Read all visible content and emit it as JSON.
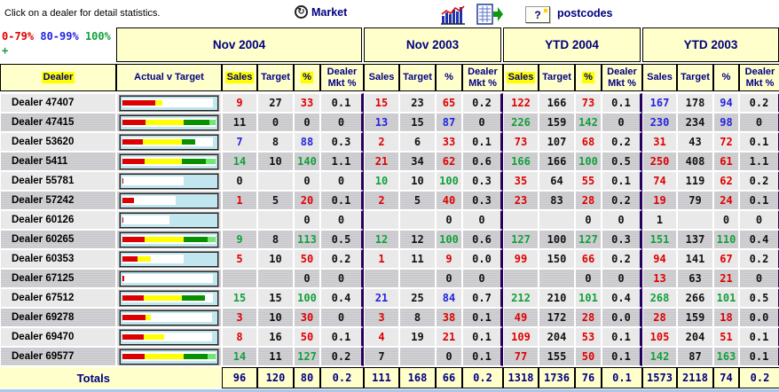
{
  "topbar": {
    "instructions": "Click on a dealer for detail statistics.",
    "market_label": "Market",
    "market_glyph": "↻",
    "help_label": "?",
    "postcodes_label": "postcodes"
  },
  "legend": {
    "low": "0-79%",
    "mid": "80-99%",
    "high": "100%",
    "plus": "+"
  },
  "groups": [
    {
      "label": "Nov 2004",
      "highlight": true
    },
    {
      "label": "Nov 2003",
      "highlight": false
    },
    {
      "label": "YTD 2004",
      "highlight": true
    },
    {
      "label": "YTD 2003",
      "highlight": false
    }
  ],
  "columns": {
    "dealer": "Dealer",
    "actual_v_target": "Actual v Target",
    "sales": "Sales",
    "target": "Target",
    "pct": "%",
    "mkt": "Dealer Mkt %"
  },
  "rows": [
    {
      "dealer": "Dealer 47407",
      "bar": {
        "track": 97,
        "segments": [
          [
            "red",
            36
          ],
          [
            "yellow",
            8
          ]
        ]
      },
      "groups": [
        [
          "9",
          "27",
          "33",
          "0.1"
        ],
        [
          "15",
          "23",
          "65",
          "0.2"
        ],
        [
          "122",
          "166",
          "73",
          "0.1"
        ],
        [
          "167",
          "178",
          "94",
          "0.2"
        ]
      ]
    },
    {
      "dealer": "Dealer 47415",
      "bar": {
        "track": 100,
        "segments": [
          [
            "red",
            25
          ],
          [
            "yellow",
            41
          ],
          [
            "green",
            27
          ],
          [
            "lgreen",
            7
          ]
        ]
      },
      "groups": [
        [
          "11",
          "0",
          "0",
          "0"
        ],
        [
          "13",
          "15",
          "87",
          "0"
        ],
        [
          "226",
          "159",
          "142",
          "0"
        ],
        [
          "230",
          "234",
          "98",
          "0"
        ]
      ]
    },
    {
      "dealer": "Dealer 53620",
      "bar": {
        "track": 97,
        "segments": [
          [
            "red",
            23
          ],
          [
            "yellow",
            43
          ],
          [
            "green",
            15
          ]
        ]
      },
      "groups": [
        [
          "7",
          "8",
          "88",
          "0.3"
        ],
        [
          "2",
          "6",
          "33",
          "0.1"
        ],
        [
          "73",
          "107",
          "68",
          "0.2"
        ],
        [
          "31",
          "43",
          "72",
          "0.1"
        ]
      ]
    },
    {
      "dealer": "Dealer 5411",
      "bar": {
        "track": 100,
        "segments": [
          [
            "red",
            24
          ],
          [
            "yellow",
            40
          ],
          [
            "green",
            26
          ],
          [
            "lgreen",
            10
          ]
        ]
      },
      "groups": [
        [
          "14",
          "10",
          "140",
          "1.1"
        ],
        [
          "21",
          "34",
          "62",
          "0.6"
        ],
        [
          "166",
          "166",
          "100",
          "0.5"
        ],
        [
          "250",
          "408",
          "61",
          "1.1"
        ]
      ]
    },
    {
      "dealer": "Dealer 55781",
      "bar": {
        "track": 66,
        "segments": [
          [
            "red",
            2
          ]
        ]
      },
      "groups": [
        [
          "0",
          "",
          "0",
          "0"
        ],
        [
          "10",
          "10",
          "100",
          "0.3"
        ],
        [
          "35",
          "64",
          "55",
          "0.1"
        ],
        [
          "74",
          "119",
          "62",
          "0.2"
        ]
      ]
    },
    {
      "dealer": "Dealer 57242",
      "bar": {
        "track": 57,
        "segments": [
          [
            "red",
            21
          ]
        ]
      },
      "groups": [
        [
          "1",
          "5",
          "20",
          "0.1"
        ],
        [
          "2",
          "5",
          "40",
          "0.3"
        ],
        [
          "23",
          "83",
          "28",
          "0.2"
        ],
        [
          "19",
          "79",
          "24",
          "0.1"
        ]
      ]
    },
    {
      "dealer": "Dealer 60126",
      "bar": {
        "track": 50,
        "segments": [
          [
            "red",
            2
          ]
        ]
      },
      "groups": [
        [
          "",
          "",
          "0",
          "0"
        ],
        [
          "",
          "",
          "0",
          "0"
        ],
        [
          "",
          "",
          "0",
          "0"
        ],
        [
          "1",
          "",
          "0",
          "0"
        ]
      ]
    },
    {
      "dealer": "Dealer 60265",
      "bar": {
        "track": 100,
        "segments": [
          [
            "red",
            24
          ],
          [
            "yellow",
            42
          ],
          [
            "green",
            25
          ],
          [
            "lgreen",
            9
          ]
        ]
      },
      "groups": [
        [
          "9",
          "8",
          "113",
          "0.5"
        ],
        [
          "12",
          "12",
          "100",
          "0.6"
        ],
        [
          "127",
          "100",
          "127",
          "0.3"
        ],
        [
          "151",
          "137",
          "110",
          "0.4"
        ]
      ]
    },
    {
      "dealer": "Dealer 60353",
      "bar": {
        "track": 66,
        "segments": [
          [
            "red",
            24
          ],
          [
            "yellow",
            22
          ]
        ]
      },
      "groups": [
        [
          "5",
          "10",
          "50",
          "0.2"
        ],
        [
          "1",
          "11",
          "9",
          "0.0"
        ],
        [
          "99",
          "150",
          "66",
          "0.2"
        ],
        [
          "94",
          "141",
          "67",
          "0.2"
        ]
      ]
    },
    {
      "dealer": "Dealer 67125",
      "bar": {
        "track": 97,
        "segments": [
          [
            "red",
            2
          ]
        ]
      },
      "groups": [
        [
          "",
          "",
          "0",
          "0"
        ],
        [
          "",
          "",
          "0",
          "0"
        ],
        [
          "",
          "",
          "0",
          "0"
        ],
        [
          "13",
          "63",
          "21",
          "0"
        ]
      ]
    },
    {
      "dealer": "Dealer 67512",
      "bar": {
        "track": 97,
        "segments": [
          [
            "red",
            24
          ],
          [
            "yellow",
            42
          ],
          [
            "green",
            25
          ]
        ]
      },
      "groups": [
        [
          "15",
          "15",
          "100",
          "0.4"
        ],
        [
          "21",
          "25",
          "84",
          "0.7"
        ],
        [
          "212",
          "210",
          "101",
          "0.4"
        ],
        [
          "268",
          "266",
          "101",
          "0.5"
        ]
      ]
    },
    {
      "dealer": "Dealer 69278",
      "bar": {
        "track": 96,
        "segments": [
          [
            "red",
            26
          ],
          [
            "yellow",
            6
          ]
        ]
      },
      "groups": [
        [
          "3",
          "10",
          "30",
          "0"
        ],
        [
          "3",
          "8",
          "38",
          "0.1"
        ],
        [
          "49",
          "172",
          "28",
          "0.0"
        ],
        [
          "28",
          "159",
          "18",
          "0.0"
        ]
      ]
    },
    {
      "dealer": "Dealer 69470",
      "bar": {
        "track": 96,
        "segments": [
          [
            "red",
            24
          ],
          [
            "yellow",
            23
          ]
        ]
      },
      "groups": [
        [
          "8",
          "16",
          "50",
          "0.1"
        ],
        [
          "4",
          "19",
          "21",
          "0.1"
        ],
        [
          "109",
          "204",
          "53",
          "0.1"
        ],
        [
          "105",
          "204",
          "51",
          "0.1"
        ]
      ]
    },
    {
      "dealer": "Dealer 69577",
      "bar": {
        "track": 100,
        "segments": [
          [
            "red",
            24
          ],
          [
            "yellow",
            42
          ],
          [
            "green",
            25
          ],
          [
            "lgreen",
            9
          ]
        ]
      },
      "groups": [
        [
          "14",
          "11",
          "127",
          "0.2"
        ],
        [
          "7",
          "",
          "0",
          "0.1"
        ],
        [
          "77",
          "155",
          "50",
          "0.1"
        ],
        [
          "142",
          "87",
          "163",
          "0.1"
        ]
      ]
    }
  ],
  "totals": {
    "label": "Totals",
    "groups": [
      [
        "96",
        "120",
        "80",
        "0.2"
      ],
      [
        "111",
        "168",
        "66",
        "0.2"
      ],
      [
        "1318",
        "1736",
        "76",
        "0.1"
      ],
      [
        "1573",
        "2118",
        "74",
        "0.2"
      ]
    ]
  },
  "colors": {
    "accent_navy": "#000080",
    "header_bg": "#ffffcc",
    "highlight": "#ffff00",
    "row_light": "#e9e9e9",
    "row_dark": "#c6c6ca",
    "value_red": "#e00000",
    "value_blue": "#2424e0",
    "value_green": "#12a03a",
    "legend_low_color": "#e00000",
    "legend_mid_color": "#2424e0",
    "legend_high_color": "#12a03a",
    "bar_bg": "#c2e6ef",
    "bar_red": "#dd0000",
    "bar_yellow": "#ffff00",
    "bar_green": "#0a8f00",
    "bar_lightgreen": "#70e870",
    "group_separator": "#26005d"
  }
}
